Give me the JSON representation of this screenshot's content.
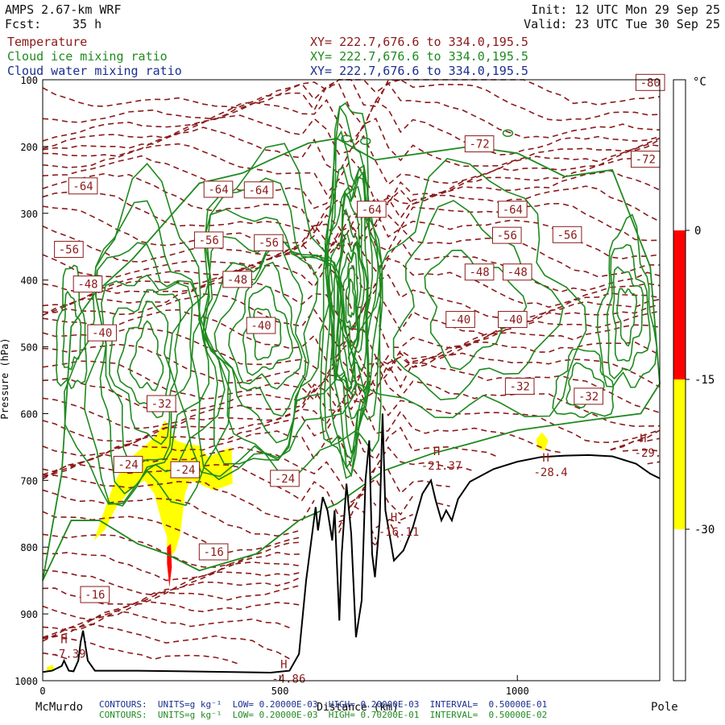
{
  "header": {
    "model": "AMPS 2.67-km WRF",
    "fcst_label": "Fcst:",
    "fcst_value": "35 h",
    "init": "Init: 12 UTC Mon 29 Sep 25",
    "valid": "Valid: 23 UTC Tue 30 Sep 25"
  },
  "fields": [
    {
      "name": "Temperature",
      "xy": "XY= 222.7,676.6 to 334.0,195.5",
      "color": "#8b1a1a"
    },
    {
      "name": "Cloud ice mixing ratio",
      "xy": "XY= 222.7,676.6 to 334.0,195.5",
      "color": "#1f8a1f"
    },
    {
      "name": "Cloud water mixing ratio",
      "xy": "XY= 222.7,676.6 to 334.0,195.5",
      "color": "#1a2f8f"
    }
  ],
  "footer": {
    "left_station": "McMurdo",
    "right_station": "Pole",
    "contours_blue": "CONTOURS:  UNITS=g kg⁻¹  LOW= 0.20000E-03  HIGH= 0.20000E-03  INTERVAL=  0.50000E-01",
    "contours_green": "CONTOURS:  UNITS=g kg⁻¹  LOW= 0.20000E-03  HIGH= 0.70200E-01  INTERVAL=  0.50000E-02"
  },
  "colorbar": {
    "unit": "°C",
    "ticks": [
      "0",
      "-15",
      "-30"
    ],
    "colors": {
      "warm": "#ff0000",
      "mid": "#ffff00",
      "cold": "#ffffff"
    }
  },
  "chart_data": {
    "type": "cross-section",
    "xlabel": "Distance (km)",
    "ylabel": "Pressure (hPa)",
    "xlim": [
      0,
      1300
    ],
    "ylim": [
      1000,
      100
    ],
    "x_ticks": [
      0,
      500,
      1000
    ],
    "y_ticks": [
      100,
      200,
      300,
      400,
      500,
      600,
      700,
      800,
      900,
      1000
    ],
    "temperature_contour_labels": [
      {
        "x": 85,
        "p": 259,
        "t": "-64"
      },
      {
        "x": 370,
        "p": 264,
        "t": "-64"
      },
      {
        "x": 455,
        "p": 265,
        "t": "-64"
      },
      {
        "x": 693,
        "p": 294,
        "t": "-64"
      },
      {
        "x": 990,
        "p": 294,
        "t": "-64"
      },
      {
        "x": 920,
        "p": 196,
        "t": "-72"
      },
      {
        "x": 1270,
        "p": 219,
        "t": "-72"
      },
      {
        "x": 1280,
        "p": 104,
        "t": "-80"
      },
      {
        "x": 55,
        "p": 354,
        "t": "-56"
      },
      {
        "x": 350,
        "p": 340,
        "t": "-56"
      },
      {
        "x": 476,
        "p": 344,
        "t": "-56"
      },
      {
        "x": 978,
        "p": 333,
        "t": "-56"
      },
      {
        "x": 1105,
        "p": 332,
        "t": "-56"
      },
      {
        "x": 95,
        "p": 406,
        "t": "-48"
      },
      {
        "x": 410,
        "p": 399,
        "t": "-48"
      },
      {
        "x": 920,
        "p": 388,
        "t": "-48"
      },
      {
        "x": 1000,
        "p": 388,
        "t": "-48"
      },
      {
        "x": 125,
        "p": 479,
        "t": "-40"
      },
      {
        "x": 460,
        "p": 468,
        "t": "-40"
      },
      {
        "x": 880,
        "p": 459,
        "t": "-40"
      },
      {
        "x": 990,
        "p": 459,
        "t": "-40"
      },
      {
        "x": 250,
        "p": 585,
        "t": "-32"
      },
      {
        "x": 1005,
        "p": 559,
        "t": "-32"
      },
      {
        "x": 1150,
        "p": 574,
        "t": "-32"
      },
      {
        "x": 180,
        "p": 676,
        "t": "-24"
      },
      {
        "x": 300,
        "p": 684,
        "t": "-24"
      },
      {
        "x": 510,
        "p": 697,
        "t": "-24"
      },
      {
        "x": 360,
        "p": 807,
        "t": "-16"
      },
      {
        "x": 110,
        "p": 871,
        "t": "-16"
      }
    ],
    "highs": [
      {
        "x": 45,
        "p": 944,
        "label": "H",
        "value": "-7.39"
      },
      {
        "x": 508,
        "p": 981,
        "label": "H",
        "value": "-4.86"
      },
      {
        "x": 740,
        "p": 761,
        "label": "H",
        "value": "-16.11"
      },
      {
        "x": 830,
        "p": 662,
        "label": "H",
        "value": "-21.37"
      },
      {
        "x": 1060,
        "p": 672,
        "label": "H",
        "value": "-28.4"
      },
      {
        "x": 1265,
        "p": 643,
        "label": "H",
        "value": "-29."
      }
    ],
    "terrain_pressure": [
      [
        0,
        987
      ],
      [
        20,
        985
      ],
      [
        40,
        978
      ],
      [
        45,
        970
      ],
      [
        55,
        985
      ],
      [
        65,
        986
      ],
      [
        75,
        970
      ],
      [
        80,
        942
      ],
      [
        85,
        925
      ],
      [
        95,
        970
      ],
      [
        110,
        985
      ],
      [
        200,
        985
      ],
      [
        300,
        986
      ],
      [
        400,
        987
      ],
      [
        480,
        988
      ],
      [
        520,
        985
      ],
      [
        540,
        960
      ],
      [
        555,
        850
      ],
      [
        565,
        795
      ],
      [
        575,
        740
      ],
      [
        580,
        775
      ],
      [
        590,
        725
      ],
      [
        600,
        745
      ],
      [
        610,
        790
      ],
      [
        615,
        745
      ],
      [
        625,
        910
      ],
      [
        630,
        810
      ],
      [
        640,
        705
      ],
      [
        650,
        780
      ],
      [
        660,
        935
      ],
      [
        672,
        880
      ],
      [
        680,
        700
      ],
      [
        688,
        640
      ],
      [
        694,
        810
      ],
      [
        700,
        845
      ],
      [
        710,
        760
      ],
      [
        716,
        600
      ],
      [
        722,
        745
      ],
      [
        740,
        820
      ],
      [
        760,
        805
      ],
      [
        780,
        770
      ],
      [
        800,
        720
      ],
      [
        818,
        700
      ],
      [
        828,
        730
      ],
      [
        840,
        760
      ],
      [
        850,
        745
      ],
      [
        862,
        760
      ],
      [
        875,
        728
      ],
      [
        900,
        702
      ],
      [
        950,
        683
      ],
      [
        1000,
        672
      ],
      [
        1050,
        665
      ],
      [
        1100,
        663
      ],
      [
        1150,
        662
      ],
      [
        1200,
        664
      ],
      [
        1250,
        675
      ],
      [
        1280,
        690
      ],
      [
        1300,
        697
      ]
    ],
    "cloud_ice_envelope": [
      [
        0,
        850
      ],
      [
        40,
        690
      ],
      [
        60,
        470
      ],
      [
        110,
        420
      ],
      [
        190,
        368
      ],
      [
        330,
        255
      ],
      [
        420,
        240
      ],
      [
        480,
        220
      ],
      [
        560,
        195
      ],
      [
        620,
        188
      ],
      [
        700,
        220
      ],
      [
        800,
        210
      ],
      [
        900,
        200
      ],
      [
        1000,
        210
      ],
      [
        1100,
        245
      ],
      [
        1200,
        235
      ],
      [
        1280,
        380
      ],
      [
        1300,
        555
      ],
      [
        1260,
        600
      ],
      [
        1150,
        610
      ],
      [
        1000,
        625
      ],
      [
        900,
        645
      ],
      [
        820,
        660
      ],
      [
        720,
        685
      ],
      [
        620,
        735
      ],
      [
        540,
        760
      ],
      [
        450,
        810
      ],
      [
        330,
        835
      ],
      [
        260,
        810
      ],
      [
        200,
        795
      ],
      [
        120,
        760
      ],
      [
        60,
        760
      ]
    ],
    "shaded_temperature_regions": [
      {
        "range": "-30 to -15",
        "color": "yellow"
      },
      {
        "range": "-15 to 0",
        "color": "red"
      }
    ]
  }
}
